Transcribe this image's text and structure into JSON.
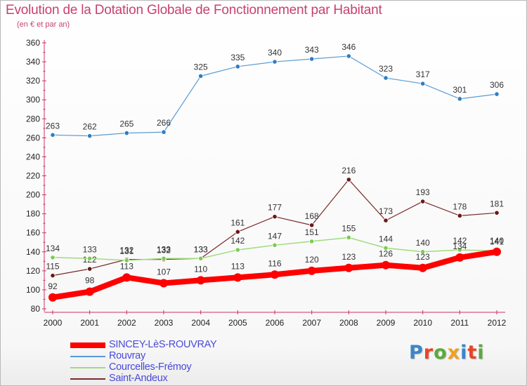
{
  "title": "Evolution de la Dotation Globale de Fonctionnement par Habitant",
  "subtitle": "(en € et par an)",
  "logo": {
    "text": "Proxiti",
    "colors": [
      "#3a86c8",
      "#e8442a",
      "#5aaa3c",
      "#f0a020",
      "#3a86c8",
      "#e8442a",
      "#5aaa3c"
    ]
  },
  "chart_data": {
    "type": "line",
    "x": [
      "2000",
      "2001",
      "2002",
      "2003",
      "2004",
      "2005",
      "2006",
      "2007",
      "2008",
      "2009",
      "2010",
      "2011",
      "2012"
    ],
    "ylim": [
      80,
      360
    ],
    "yticks": [
      80,
      100,
      120,
      140,
      160,
      180,
      200,
      220,
      240,
      260,
      280,
      300,
      320,
      340,
      360
    ],
    "grid": false,
    "legend_position": "bottom-left",
    "series": [
      {
        "name": "Rouvray",
        "color": "#5b9bd5",
        "marker": "#2f7ec2",
        "width": 1.2,
        "values": [
          263,
          262,
          265,
          266,
          325,
          335,
          340,
          343,
          346,
          323,
          317,
          301,
          306
        ]
      },
      {
        "name": "Saint-Andeux",
        "color": "#7a2a2a",
        "marker": "#6b1818",
        "width": 1.2,
        "values": [
          115,
          122,
          132,
          132,
          133,
          161,
          177,
          168,
          216,
          173,
          193,
          178,
          181
        ]
      },
      {
        "name": "Courcelles-Frémoy",
        "color": "#9fdc7c",
        "marker": "#7ccc50",
        "width": 1.5,
        "values": [
          134,
          133,
          131,
          133,
          133,
          142,
          147,
          151,
          155,
          144,
          140,
          142,
          141
        ]
      },
      {
        "name": "SINCEY-LèS-ROUVRAY",
        "color": "#ff0000",
        "marker": "#ff0000",
        "width": 8,
        "values": [
          92,
          98,
          113,
          107,
          110,
          113,
          116,
          120,
          123,
          126,
          123,
          134,
          140
        ]
      }
    ],
    "legend_order": [
      "SINCEY-LèS-ROUVRAY",
      "Rouvray",
      "Courcelles-Frémoy",
      "Saint-Andeux"
    ]
  }
}
